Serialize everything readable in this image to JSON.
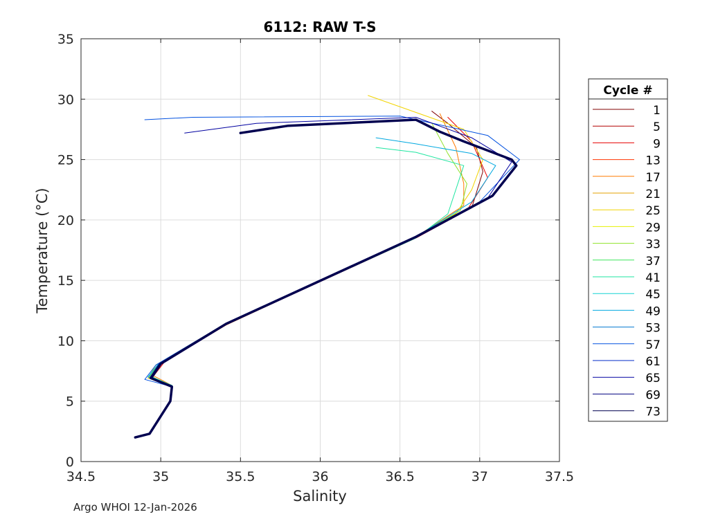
{
  "chart_data": {
    "type": "line",
    "title": "6112: RAW T-S",
    "xlabel": "Salinity",
    "ylabel": "Temperature (°C)",
    "xlim": [
      34.5,
      37.5
    ],
    "ylim": [
      0,
      35
    ],
    "xticks": [
      "34.5",
      "35",
      "35.5",
      "36",
      "36.5",
      "37",
      "37.5"
    ],
    "yticks": [
      "0",
      "5",
      "10",
      "15",
      "20",
      "25",
      "30",
      "35"
    ],
    "grid": true,
    "legend": {
      "title": "Cycle #",
      "placement": "right",
      "entries": [
        {
          "label": "1",
          "color": "#800000"
        },
        {
          "label": "5",
          "color": "#b30000"
        },
        {
          "label": "9",
          "color": "#e60000"
        },
        {
          "label": "13",
          "color": "#ff3300"
        },
        {
          "label": "17",
          "color": "#ff7a00"
        },
        {
          "label": "21",
          "color": "#e6a000"
        },
        {
          "label": "25",
          "color": "#f2d400"
        },
        {
          "label": "29",
          "color": "#e6f000"
        },
        {
          "label": "33",
          "color": "#8fe22a"
        },
        {
          "label": "37",
          "color": "#3ce65a"
        },
        {
          "label": "41",
          "color": "#1ee6a0"
        },
        {
          "label": "45",
          "color": "#14d2d2"
        },
        {
          "label": "49",
          "color": "#00a8e0"
        },
        {
          "label": "53",
          "color": "#0078d0"
        },
        {
          "label": "57",
          "color": "#0050e0"
        },
        {
          "label": "61",
          "color": "#0028c8"
        },
        {
          "label": "65",
          "color": "#0000a0"
        },
        {
          "label": "69",
          "color": "#000080"
        },
        {
          "label": "73",
          "color": "#000050"
        }
      ]
    },
    "series": [
      {
        "name": "1",
        "x": [
          34.84,
          34.93,
          35.06,
          35.07,
          34.93,
          34.98,
          35.4,
          36.6,
          36.95,
          37.02,
          36.98,
          36.8,
          36.7
        ],
        "y": [
          2.0,
          2.3,
          5.0,
          6.3,
          7.0,
          8.0,
          11.3,
          18.6,
          21.0,
          24.0,
          26.0,
          28.0,
          29.0
        ]
      },
      {
        "name": "9",
        "x": [
          34.84,
          34.93,
          35.06,
          35.07,
          34.95,
          35.02,
          35.42,
          36.6,
          36.92,
          37.05,
          36.95,
          36.8
        ],
        "y": [
          2.0,
          2.3,
          5.0,
          6.2,
          7.0,
          8.2,
          11.4,
          18.5,
          20.8,
          23.5,
          26.5,
          28.5
        ]
      },
      {
        "name": "17",
        "x": [
          34.84,
          34.93,
          35.06,
          35.07,
          34.94,
          35.0,
          35.41,
          36.6,
          36.9,
          36.9,
          36.85,
          36.75
        ],
        "y": [
          2.0,
          2.3,
          5.0,
          6.3,
          7.2,
          8.1,
          11.3,
          18.6,
          21.2,
          23.0,
          26.0,
          28.8
        ]
      },
      {
        "name": "25",
        "x": [
          34.84,
          34.93,
          35.06,
          35.07,
          34.92,
          34.97,
          35.39,
          36.6,
          36.85,
          36.95,
          37.02,
          36.9,
          36.3
        ],
        "y": [
          2.0,
          2.3,
          5.0,
          6.3,
          6.9,
          8.0,
          11.3,
          18.6,
          20.5,
          22.5,
          25.0,
          27.5,
          30.3
        ]
      },
      {
        "name": "33",
        "x": [
          34.84,
          34.93,
          35.06,
          35.07,
          34.93,
          34.99,
          35.4,
          36.6,
          36.88,
          36.92,
          36.8,
          36.7
        ],
        "y": [
          2.0,
          2.3,
          5.0,
          6.3,
          7.0,
          8.1,
          11.4,
          18.6,
          20.8,
          23.0,
          25.5,
          28.0
        ]
      },
      {
        "name": "41",
        "x": [
          34.84,
          34.93,
          35.06,
          35.07,
          34.93,
          34.98,
          35.4,
          36.6,
          36.8,
          36.9,
          36.6,
          36.35
        ],
        "y": [
          2.0,
          2.3,
          5.0,
          6.3,
          7.1,
          8.0,
          11.3,
          18.5,
          20.5,
          24.5,
          25.6,
          26.0
        ]
      },
      {
        "name": "49",
        "x": [
          34.84,
          34.93,
          35.06,
          35.07,
          34.92,
          34.98,
          35.4,
          36.6,
          36.95,
          37.1,
          36.95,
          36.6,
          36.35
        ],
        "y": [
          2.0,
          2.3,
          5.0,
          6.3,
          7.0,
          8.0,
          11.3,
          18.6,
          21.5,
          24.5,
          25.5,
          26.3,
          26.8
        ]
      },
      {
        "name": "57",
        "x": [
          34.84,
          34.93,
          35.06,
          35.07,
          34.9,
          34.97,
          35.39,
          36.6,
          37.0,
          37.25,
          37.05,
          36.5,
          35.2,
          34.9
        ],
        "y": [
          2.0,
          2.3,
          5.0,
          6.2,
          6.8,
          8.0,
          11.3,
          18.6,
          21.5,
          25.0,
          27.0,
          28.6,
          28.5,
          28.3
        ]
      },
      {
        "name": "65",
        "x": [
          34.84,
          34.93,
          35.06,
          35.07,
          34.93,
          34.99,
          35.4,
          36.6,
          37.05,
          37.2,
          36.95,
          36.6,
          35.6,
          35.15
        ],
        "y": [
          2.0,
          2.3,
          5.0,
          6.2,
          6.9,
          8.1,
          11.3,
          18.6,
          21.8,
          24.8,
          26.8,
          28.5,
          28.0,
          27.2
        ]
      },
      {
        "name": "73",
        "x": [
          34.84,
          34.93,
          35.06,
          35.07,
          34.94,
          35.0,
          35.41,
          36.6,
          37.08,
          37.23,
          37.2,
          36.9,
          36.75,
          36.6,
          35.8,
          35.5
        ],
        "y": [
          2.0,
          2.3,
          5.0,
          6.2,
          6.9,
          8.1,
          11.4,
          18.6,
          22.0,
          24.5,
          25.0,
          26.5,
          27.3,
          28.3,
          27.8,
          27.2
        ]
      }
    ]
  },
  "footer": "Argo WHOI 12-Jan-2026"
}
